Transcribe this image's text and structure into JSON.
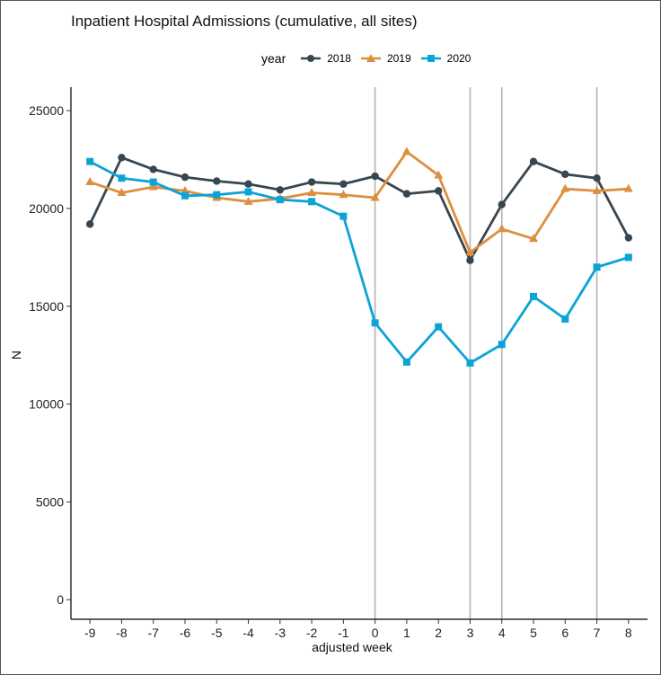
{
  "chart_data": {
    "type": "line",
    "title": "Inpatient Hospital Admissions (cumulative, all sites)",
    "xlabel": "adjusted week",
    "ylabel": "N",
    "x": [
      -9,
      -8,
      -7,
      -6,
      -5,
      -4,
      -3,
      -2,
      -1,
      0,
      1,
      2,
      3,
      4,
      5,
      6,
      7,
      8
    ],
    "xlim": [
      -9.6,
      8.6
    ],
    "ylim": [
      -1000,
      26200
    ],
    "y_ticks": [
      0,
      5000,
      10000,
      15000,
      20000,
      25000
    ],
    "vertical_lines": [
      0,
      3,
      4,
      7
    ],
    "legend": {
      "title": "year",
      "position": "top"
    },
    "grid": false,
    "series": [
      {
        "name": "2018",
        "color": "#37474f",
        "marker": "circle",
        "values": [
          19200,
          22600,
          22000,
          21600,
          21400,
          21250,
          20950,
          21350,
          21250,
          21650,
          20750,
          20900,
          17350,
          20200,
          22400,
          21750,
          21550,
          18500
        ]
      },
      {
        "name": "2019",
        "color": "#dc8f3f",
        "marker": "triangle",
        "values": [
          21350,
          20800,
          21100,
          20900,
          20550,
          20350,
          20500,
          20800,
          20700,
          20550,
          22900,
          21700,
          17750,
          18950,
          18450,
          21000,
          20900,
          21000
        ]
      },
      {
        "name": "2020",
        "color": "#0ca3d6",
        "marker": "square",
        "values": [
          22400,
          21550,
          21350,
          20650,
          20700,
          20850,
          20450,
          20350,
          19600,
          14150,
          12150,
          13950,
          12100,
          13050,
          15500,
          14350,
          17000,
          17500
        ]
      }
    ]
  }
}
